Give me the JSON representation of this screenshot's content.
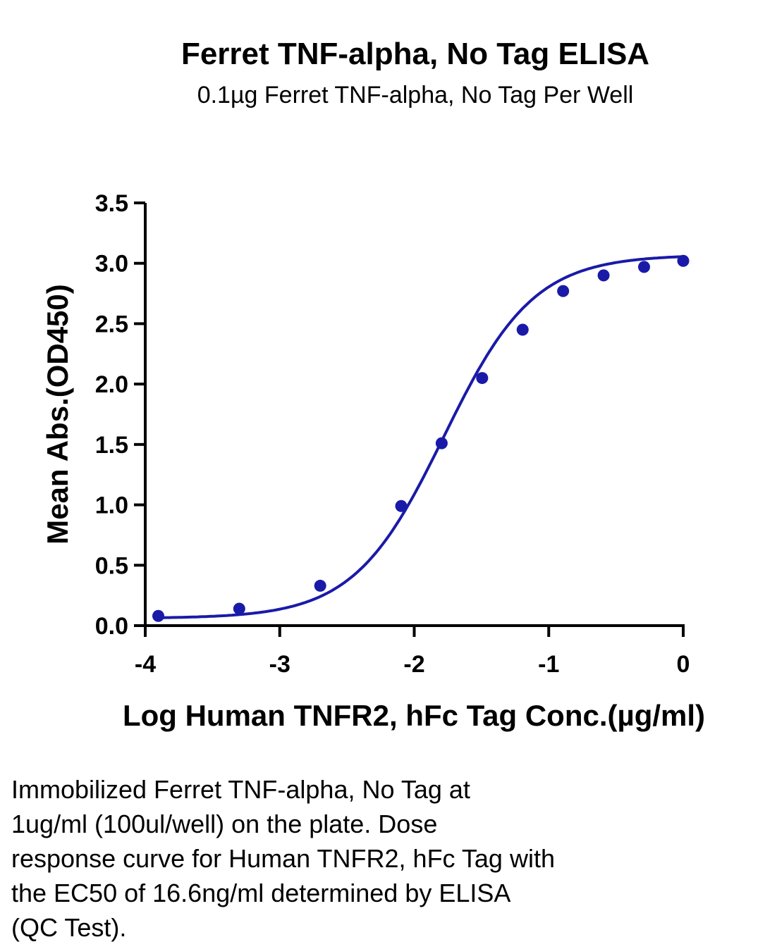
{
  "header": {
    "title": "Ferret TNF-alpha, No Tag ELISA",
    "subtitle": "0.1µg Ferret TNF-alpha, No Tag Per Well"
  },
  "chart_data": {
    "type": "scatter",
    "xlabel": "Log Human TNFR2, hFc Tag Conc.(µg/ml)",
    "ylabel": "Mean Abs.(OD450)",
    "xlim": [
      -4,
      0
    ],
    "ylim": [
      0,
      3.5
    ],
    "x_ticks": [
      "-4",
      "-3",
      "-2",
      "-1",
      "0"
    ],
    "y_ticks": [
      "0.0",
      "0.5",
      "1.0",
      "1.5",
      "2.0",
      "2.5",
      "3.0",
      "3.5"
    ],
    "grid": false,
    "series": [
      {
        "color": "#1a1aa8",
        "x": [
          -3.903,
          -3.301,
          -2.699,
          -2.097,
          -1.796,
          -1.495,
          -1.194,
          -0.893,
          -0.592,
          -0.291,
          0.0
        ],
        "y": [
          0.08,
          0.14,
          0.33,
          0.99,
          1.51,
          2.05,
          2.45,
          2.77,
          2.9,
          2.97,
          3.02
        ],
        "fit": "four-parameter logistic"
      }
    ]
  },
  "caption": {
    "lines": [
      "Immobilized Ferret TNF-alpha, No Tag at",
      "1ug/ml (100ul/well) on the plate. Dose",
      "response curve for Human TNFR2, hFc Tag with",
      "the EC50 of 16.6ng/ml determined by ELISA",
      "(QC Test)."
    ]
  }
}
